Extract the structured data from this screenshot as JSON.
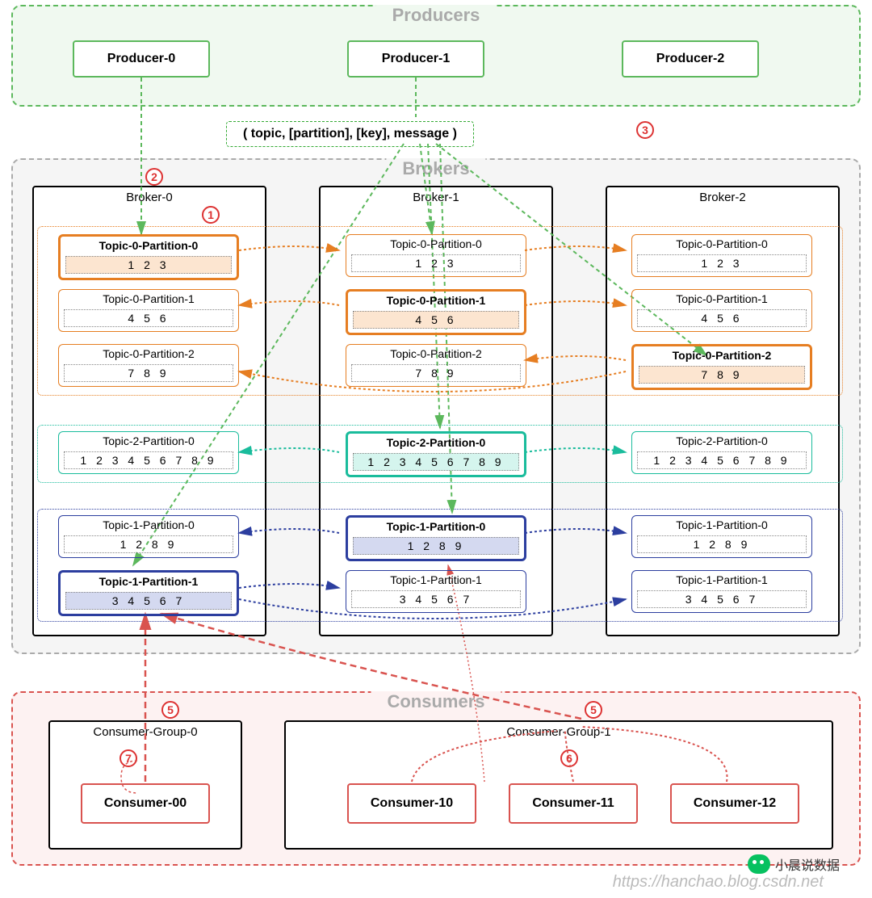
{
  "sections": {
    "producers": {
      "title": "Producers",
      "color": "#5cb85c",
      "bg": "#f0f9f0"
    },
    "brokers": {
      "title": "Brokers",
      "color": "#aaa",
      "bg": "#f5f5f5"
    },
    "consumers": {
      "title": "Consumers",
      "color": "#d9534f",
      "bg": "#fdf2f2"
    }
  },
  "producers": [
    {
      "label": "Producer-0",
      "color": "#5cb85c"
    },
    {
      "label": "Producer-1",
      "color": "#5cb85c"
    },
    {
      "label": "Producer-2",
      "color": "#5cb85c"
    }
  ],
  "message": "( topic, [partition], [key], message )",
  "brokers": [
    {
      "label": "Broker-0"
    },
    {
      "label": "Broker-1"
    },
    {
      "label": "Broker-2"
    }
  ],
  "topics": {
    "t0": {
      "color": "#e67e22",
      "fill": "#fce5d0"
    },
    "t2": {
      "color": "#1abc9c",
      "fill": "#d5f5ee"
    },
    "t1": {
      "color": "#2c3e9f",
      "fill": "#d4d9f0"
    }
  },
  "partitions": {
    "b0": [
      {
        "label": "Topic-0-Partition-0",
        "data": "1 2 3",
        "topic": "t0",
        "leader": true
      },
      {
        "label": "Topic-0-Partition-1",
        "data": "4 5 6",
        "topic": "t0",
        "leader": false
      },
      {
        "label": "Topic-0-Partition-2",
        "data": "7 8 9",
        "topic": "t0",
        "leader": false
      },
      {
        "label": "Topic-2-Partition-0",
        "data": "1 2 3 4 5 6 7 8 9",
        "topic": "t2",
        "leader": false
      },
      {
        "label": "Topic-1-Partition-0",
        "data": "1 2 8 9",
        "topic": "t1",
        "leader": false
      },
      {
        "label": "Topic-1-Partition-1",
        "data": "3 4 5 6 7",
        "topic": "t1",
        "leader": true
      }
    ],
    "b1": [
      {
        "label": "Topic-0-Partition-0",
        "data": "1 2 3",
        "topic": "t0",
        "leader": false
      },
      {
        "label": "Topic-0-Partition-1",
        "data": "4 5 6",
        "topic": "t0",
        "leader": true
      },
      {
        "label": "Topic-0-Partition-2",
        "data": "7 8 9",
        "topic": "t0",
        "leader": false
      },
      {
        "label": "Topic-2-Partition-0",
        "data": "1 2 3 4 5 6 7 8 9",
        "topic": "t2",
        "leader": true
      },
      {
        "label": "Topic-1-Partition-0",
        "data": "1 2 8 9",
        "topic": "t1",
        "leader": true
      },
      {
        "label": "Topic-1-Partition-1",
        "data": "3 4 5 6 7",
        "topic": "t1",
        "leader": false
      }
    ],
    "b2": [
      {
        "label": "Topic-0-Partition-0",
        "data": "1 2 3",
        "topic": "t0",
        "leader": false
      },
      {
        "label": "Topic-0-Partition-1",
        "data": "4 5 6",
        "topic": "t0",
        "leader": false
      },
      {
        "label": "Topic-0-Partition-2",
        "data": "7 8 9",
        "topic": "t0",
        "leader": true
      },
      {
        "label": "Topic-2-Partition-0",
        "data": "1 2 3 4 5 6 7 8 9",
        "topic": "t2",
        "leader": false
      },
      {
        "label": "Topic-1-Partition-0",
        "data": "1 2 8 9",
        "topic": "t1",
        "leader": false
      },
      {
        "label": "Topic-1-Partition-1",
        "data": "3 4 5 6 7",
        "topic": "t1",
        "leader": false
      }
    ]
  },
  "consumerGroups": [
    {
      "label": "Consumer-Group-0",
      "consumers": [
        "Consumer-00"
      ]
    },
    {
      "label": "Consumer-Group-1",
      "consumers": [
        "Consumer-10",
        "Consumer-11",
        "Consumer-12"
      ]
    }
  ],
  "consumerColor": "#d9534f",
  "badges": {
    "1": "①",
    "2": "②",
    "3": "③",
    "5a": "⑤",
    "5b": "⑤",
    "6": "⑥",
    "7": "⑦"
  },
  "watermark": "https://hanchao.blog.csdn.net",
  "wechat": "小晨说数据"
}
